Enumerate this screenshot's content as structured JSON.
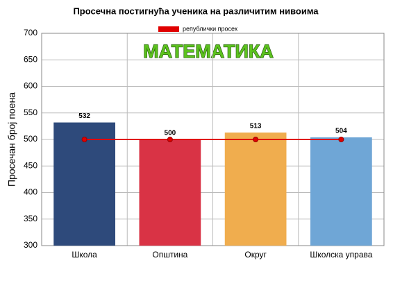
{
  "chart_data": {
    "type": "bar",
    "title": "Просечна постигнућа ученика на различитим нивоима",
    "annotation": "МАТЕМАТИКА",
    "y_label": "Просечан број поена",
    "categories": [
      "Школа",
      "Општина",
      "Округ",
      "Школска управа"
    ],
    "values": [
      532,
      500,
      513,
      504
    ],
    "colors": [
      "#2e4a7b",
      "#d93345",
      "#f0ad4e",
      "#6fa6d6"
    ],
    "line": {
      "name": "републички просек",
      "color": "#e00000",
      "values": [
        500,
        500,
        500,
        500
      ]
    },
    "ylim": [
      300,
      700
    ],
    "yticks": [
      300,
      350,
      400,
      450,
      500,
      550,
      600,
      650,
      700
    ],
    "grid": true
  }
}
